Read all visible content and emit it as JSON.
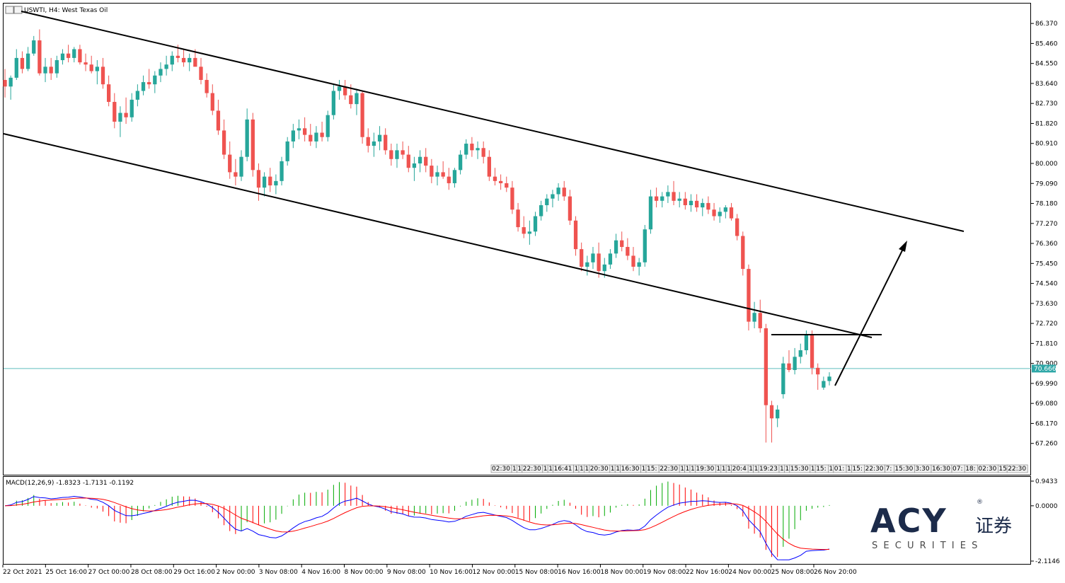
{
  "header": {
    "symbol": "USWTI",
    "timeframe": "H4:",
    "description": "West Texas Oil",
    "header_text": "USWTI, H4:  West Texas Oil"
  },
  "price_axis": {
    "ticks": [
      "86.370",
      "85.460",
      "84.550",
      "83.640",
      "82.730",
      "81.820",
      "80.910",
      "80.000",
      "79.090",
      "78.180",
      "77.270",
      "76.360",
      "75.450",
      "74.540",
      "73.630",
      "72.720",
      "71.810",
      "70.900",
      "69.990",
      "69.080",
      "68.170",
      "67.260"
    ],
    "ylim": [
      66.8,
      86.6
    ],
    "current_price": "70.666",
    "current_price_value": 70.666
  },
  "macd": {
    "label": "MACD(12,26,9) -1.8323 -1.7131 -0.1192",
    "ticks": [
      "0.9433",
      "0.0000",
      "-2.1146"
    ],
    "ylim": [
      -2.1146,
      0.9433
    ]
  },
  "time_axis": {
    "labels": [
      "22 Oct 2021",
      "25 Oct 16:00",
      "27 Oct 00:00",
      "28 Oct 08:00",
      "29 Oct 16:00",
      "2 Nov 00:00",
      "3 Nov 08:00",
      "4 Nov 16:00",
      "8 Nov 00:00",
      "9 Nov 08:00",
      "10 Nov 16:00",
      "12 Nov 00:00",
      "15 Nov 08:00",
      "16 Nov 16:00",
      "18 Nov 00:00",
      "19 Nov 08:00",
      "22 Nov 16:00",
      "24 Nov 00:00",
      "25 Nov 08:00",
      "26 Nov 20:00"
    ]
  },
  "time_scrollbar": {
    "labels": [
      "02:30",
      "1",
      "1",
      "22:30",
      "1",
      "1",
      "16:41",
      "1",
      "1",
      "1",
      "20:30",
      "1",
      "1",
      "16:30",
      "1",
      "15:",
      "22:30",
      "1",
      "1",
      "1",
      "19:30",
      "1",
      "1",
      "1",
      "20:4",
      "1",
      "1",
      "19:23",
      "1",
      "1",
      "15:30",
      "1",
      "15:",
      "1",
      "01:",
      "1",
      "15:",
      "22:30",
      "7:",
      "15:30",
      "3:30",
      "16:30",
      "07:",
      "18:",
      "02:30",
      "15",
      "22:30"
    ]
  },
  "brand": {
    "name": "ACY",
    "chinese": "证券",
    "sub": "S E C U R I T I E S",
    "registered": "®"
  },
  "colors": {
    "bull": "#26a69a",
    "bear": "#ef5350",
    "macd_line": "#0000ff",
    "signal_line": "#ff0000",
    "hist_pos": "#00aa00",
    "hist_neg": "#ff0000",
    "current_line": "#5fbdbd",
    "price_label_bg": "#2ea7a7",
    "brand_dark": "#1c2b4a"
  },
  "chart_data": {
    "type": "candlestick",
    "title": "USWTI, H4:  West Texas Oil",
    "ylim": [
      66.8,
      86.6
    ],
    "current_price": 70.666,
    "candles": [
      [
        83.8,
        84.3,
        83.0,
        83.5
      ],
      [
        83.5,
        84.0,
        82.9,
        83.9
      ],
      [
        83.9,
        85.2,
        83.8,
        84.8
      ],
      [
        84.8,
        85.1,
        84.1,
        84.3
      ],
      [
        84.3,
        85.3,
        84.2,
        85.0
      ],
      [
        85.0,
        85.8,
        84.9,
        85.6
      ],
      [
        85.6,
        86.1,
        84.0,
        84.1
      ],
      [
        84.1,
        84.8,
        83.7,
        84.4
      ],
      [
        84.4,
        84.8,
        83.8,
        84.1
      ],
      [
        84.1,
        84.9,
        83.9,
        84.7
      ],
      [
        84.7,
        85.2,
        84.5,
        85.0
      ],
      [
        85.0,
        85.4,
        84.6,
        84.8
      ],
      [
        84.8,
        85.3,
        84.6,
        85.2
      ],
      [
        85.2,
        85.4,
        84.5,
        84.6
      ],
      [
        84.6,
        85.0,
        84.2,
        84.5
      ],
      [
        84.5,
        84.9,
        84.1,
        84.2
      ],
      [
        84.2,
        84.7,
        83.6,
        84.4
      ],
      [
        84.4,
        84.8,
        83.4,
        83.6
      ],
      [
        83.6,
        84.0,
        82.6,
        82.8
      ],
      [
        82.8,
        83.2,
        81.6,
        81.9
      ],
      [
        81.9,
        82.6,
        81.2,
        82.3
      ],
      [
        82.3,
        83.0,
        81.8,
        82.1
      ],
      [
        82.1,
        83.2,
        81.9,
        82.9
      ],
      [
        82.9,
        83.6,
        82.6,
        83.3
      ],
      [
        83.3,
        84.0,
        83.1,
        83.7
      ],
      [
        83.7,
        84.3,
        83.4,
        83.6
      ],
      [
        83.6,
        84.2,
        83.2,
        84.0
      ],
      [
        84.0,
        84.6,
        83.7,
        84.3
      ],
      [
        84.3,
        84.9,
        84.0,
        84.5
      ],
      [
        84.5,
        85.1,
        84.2,
        84.9
      ],
      [
        84.9,
        85.4,
        84.6,
        84.8
      ],
      [
        84.8,
        85.2,
        84.4,
        84.6
      ],
      [
        84.6,
        85.0,
        84.2,
        84.8
      ],
      [
        84.8,
        85.2,
        84.5,
        84.4
      ],
      [
        84.4,
        84.8,
        83.6,
        83.8
      ],
      [
        83.8,
        84.1,
        83.0,
        83.2
      ],
      [
        83.2,
        83.6,
        82.2,
        82.4
      ],
      [
        82.4,
        82.9,
        81.3,
        81.5
      ],
      [
        81.5,
        82.0,
        80.2,
        80.4
      ],
      [
        80.4,
        81.0,
        79.3,
        79.6
      ],
      [
        79.6,
        80.2,
        79.0,
        79.4
      ],
      [
        79.4,
        80.6,
        79.2,
        80.3
      ],
      [
        80.3,
        82.5,
        80.1,
        82.0
      ],
      [
        82.0,
        82.3,
        79.4,
        79.7
      ],
      [
        79.7,
        80.0,
        78.3,
        78.9
      ],
      [
        78.9,
        79.6,
        78.5,
        79.4
      ],
      [
        79.4,
        79.8,
        78.7,
        79.0
      ],
      [
        79.0,
        79.5,
        78.6,
        79.2
      ],
      [
        79.2,
        80.3,
        79.0,
        80.1
      ],
      [
        80.1,
        81.2,
        79.9,
        81.0
      ],
      [
        81.0,
        81.8,
        80.7,
        81.5
      ],
      [
        81.5,
        82.0,
        81.1,
        81.6
      ],
      [
        81.6,
        82.1,
        81.0,
        81.3
      ],
      [
        81.3,
        81.8,
        80.8,
        81.0
      ],
      [
        81.0,
        81.7,
        80.7,
        81.4
      ],
      [
        81.4,
        81.9,
        81.0,
        81.2
      ],
      [
        81.2,
        82.4,
        81.0,
        82.2
      ],
      [
        82.2,
        83.6,
        82.0,
        83.3
      ],
      [
        83.3,
        83.8,
        82.9,
        83.5
      ],
      [
        83.5,
        83.8,
        82.9,
        83.1
      ],
      [
        83.1,
        83.6,
        82.5,
        82.7
      ],
      [
        82.7,
        83.4,
        82.2,
        83.2
      ],
      [
        83.2,
        83.3,
        80.9,
        81.2
      ],
      [
        81.2,
        81.6,
        80.5,
        80.8
      ],
      [
        80.8,
        81.4,
        80.3,
        81.0
      ],
      [
        81.0,
        81.7,
        80.6,
        81.3
      ],
      [
        81.3,
        81.6,
        80.4,
        80.6
      ],
      [
        80.6,
        80.9,
        79.9,
        80.2
      ],
      [
        80.2,
        80.9,
        79.8,
        80.6
      ],
      [
        80.6,
        81.0,
        80.2,
        80.4
      ],
      [
        80.4,
        80.8,
        79.6,
        79.8
      ],
      [
        79.8,
        80.3,
        79.2,
        80.0
      ],
      [
        80.0,
        80.6,
        79.6,
        80.3
      ],
      [
        80.3,
        80.7,
        79.6,
        79.9
      ],
      [
        79.9,
        80.2,
        79.1,
        79.4
      ],
      [
        79.4,
        79.9,
        79.0,
        79.6
      ],
      [
        79.6,
        80.1,
        79.3,
        79.4
      ],
      [
        79.4,
        79.8,
        78.8,
        79.1
      ],
      [
        79.1,
        79.8,
        78.9,
        79.7
      ],
      [
        79.7,
        80.6,
        79.5,
        80.4
      ],
      [
        80.4,
        81.1,
        80.2,
        80.9
      ],
      [
        80.9,
        81.2,
        80.3,
        80.6
      ],
      [
        80.6,
        81.0,
        80.2,
        80.7
      ],
      [
        80.7,
        81.0,
        80.0,
        80.3
      ],
      [
        80.3,
        80.6,
        79.2,
        79.4
      ],
      [
        79.4,
        79.8,
        79.0,
        79.2
      ],
      [
        79.2,
        79.5,
        78.8,
        79.1
      ],
      [
        79.1,
        79.4,
        78.7,
        78.9
      ],
      [
        78.9,
        79.2,
        77.7,
        77.9
      ],
      [
        77.9,
        78.2,
        76.9,
        77.1
      ],
      [
        77.1,
        77.6,
        76.6,
        76.8
      ],
      [
        76.8,
        77.4,
        76.3,
        76.9
      ],
      [
        76.9,
        77.8,
        76.7,
        77.6
      ],
      [
        77.6,
        78.3,
        77.4,
        78.1
      ],
      [
        78.1,
        78.6,
        77.8,
        78.4
      ],
      [
        78.4,
        78.8,
        78.0,
        78.6
      ],
      [
        78.6,
        79.1,
        78.3,
        78.9
      ],
      [
        78.9,
        79.2,
        78.3,
        78.5
      ],
      [
        78.5,
        78.8,
        77.2,
        77.4
      ],
      [
        77.4,
        77.6,
        75.8,
        76.1
      ],
      [
        76.1,
        76.4,
        75.1,
        75.3
      ],
      [
        75.3,
        75.8,
        74.9,
        75.5
      ],
      [
        75.5,
        76.2,
        75.2,
        75.9
      ],
      [
        75.9,
        76.4,
        74.8,
        75.1
      ],
      [
        75.1,
        75.7,
        74.8,
        75.4
      ],
      [
        75.4,
        76.1,
        75.2,
        75.9
      ],
      [
        75.9,
        76.8,
        75.7,
        76.5
      ],
      [
        76.5,
        76.9,
        76.0,
        76.2
      ],
      [
        76.2,
        76.6,
        75.6,
        75.8
      ],
      [
        75.8,
        76.2,
        75.1,
        75.3
      ],
      [
        75.3,
        75.7,
        74.9,
        75.5
      ],
      [
        75.5,
        77.2,
        75.3,
        77.0
      ],
      [
        77.0,
        78.8,
        76.8,
        78.5
      ],
      [
        78.5,
        78.9,
        78.0,
        78.3
      ],
      [
        78.3,
        78.7,
        78.0,
        78.5
      ],
      [
        78.5,
        79.0,
        78.2,
        78.7
      ],
      [
        78.7,
        79.2,
        78.1,
        78.3
      ],
      [
        78.3,
        78.7,
        78.0,
        78.4
      ],
      [
        78.4,
        78.7,
        77.9,
        78.1
      ],
      [
        78.1,
        78.6,
        77.8,
        78.3
      ],
      [
        78.3,
        78.6,
        77.8,
        78.0
      ],
      [
        78.0,
        78.4,
        77.6,
        78.2
      ],
      [
        78.2,
        78.5,
        77.7,
        77.9
      ],
      [
        77.9,
        78.2,
        77.4,
        77.6
      ],
      [
        77.6,
        78.0,
        77.3,
        77.8
      ],
      [
        77.8,
        78.1,
        77.5,
        78.0
      ],
      [
        78.0,
        78.2,
        77.4,
        77.5
      ],
      [
        77.5,
        77.7,
        76.5,
        76.7
      ],
      [
        76.7,
        76.9,
        74.9,
        75.2
      ],
      [
        75.2,
        75.4,
        72.4,
        72.8
      ],
      [
        72.8,
        73.7,
        72.5,
        73.2
      ],
      [
        73.2,
        73.8,
        72.3,
        72.5
      ],
      [
        72.5,
        72.7,
        67.3,
        69.0
      ],
      [
        69.0,
        69.2,
        67.3,
        68.4
      ],
      [
        68.4,
        69.0,
        68.0,
        68.8
      ],
      [
        69.5,
        71.2,
        69.3,
        70.9
      ],
      [
        70.9,
        71.5,
        70.5,
        70.6
      ],
      [
        70.6,
        71.6,
        70.4,
        71.2
      ],
      [
        71.2,
        71.8,
        70.9,
        71.5
      ],
      [
        71.5,
        72.4,
        71.3,
        72.2
      ],
      [
        72.2,
        72.4,
        70.4,
        70.7
      ],
      [
        70.7,
        70.9,
        69.7,
        70.4
      ],
      [
        69.8,
        70.3,
        69.7,
        70.1
      ],
      [
        70.1,
        70.5,
        69.9,
        70.3
      ]
    ],
    "trendlines": [
      {
        "name": "upper-channel",
        "points": [
          [
            "22 Oct 2021",
            86.5
          ],
          [
            "",
            76.9
          ]
        ]
      },
      {
        "name": "lower-channel",
        "points": [
          [
            "22 Oct 2021",
            81.3
          ],
          [
            "",
            72.7
          ]
        ]
      },
      {
        "name": "horizontal-level",
        "value": 72.6
      }
    ],
    "macd": {
      "params": "MACD(12,26,9)",
      "macd": -1.8323,
      "signal": -1.7131,
      "histogram": -0.1192,
      "ylim": [
        -2.1146,
        0.9433
      ]
    }
  }
}
